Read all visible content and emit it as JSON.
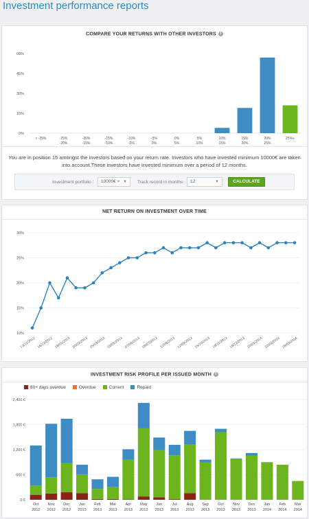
{
  "page": {
    "title": "Investment performance reports"
  },
  "compare": {
    "title": "COMPARE YOUR RETURNS WITH OTHER INVESTORS",
    "summary_line1": "You are in position 15 amongst the investors based on your return rate. Investors who have invested minimum 10000€ are taken",
    "summary_line2": "into account.These investors have invested minimum over a period of 12 months.",
    "filter": {
      "portfolio_label": "Investment portfolio :",
      "portfolio_value": "10000€ >",
      "track_label": "Track record in months:",
      "track_value": "12",
      "calculate_label": "CALCULATE"
    }
  },
  "net_return": {
    "title": "NET RETURN ON INVESTMENT OVER TIME"
  },
  "risk": {
    "title": "INVESTMENT RISK PROFILE PER ISSUED MONTH"
  },
  "chart_data": [
    {
      "type": "bar",
      "title": "COMPARE YOUR RETURNS WITH OTHER INVESTORS",
      "categories": [
        "< -25%",
        "-25%\n-20%",
        "-20%\n-15%",
        "-15%\n-10%",
        "-10%\n-5%",
        "-5%\n0%",
        "0%\n5%",
        "5%\n10%",
        "10%\n15%",
        "15%\n20%",
        "20%\n25%",
        "25%+"
      ],
      "values": [
        0,
        0,
        0,
        0,
        0,
        0,
        0,
        0,
        4,
        19,
        57,
        21
      ],
      "highlight_index": 11,
      "colors": {
        "bar": "#3d8dc4",
        "highlight": "#6cb51f"
      },
      "yticks": [
        "0%",
        "15%",
        "30%",
        "45%",
        "60%"
      ],
      "ylim": [
        0,
        60
      ],
      "grid": false
    },
    {
      "type": "line",
      "title": "NET RETURN ON INVESTMENT OVER TIME",
      "values": [
        11,
        15,
        20,
        17,
        21,
        19,
        19,
        20,
        22,
        23,
        24,
        25,
        25,
        26,
        26,
        27,
        26,
        27,
        27,
        27,
        28,
        27,
        28,
        28,
        28,
        27,
        28,
        27,
        28,
        28,
        28
      ],
      "xtick_labels": [
        "13/11/2012",
        "16/12/2012",
        "18/01/2013",
        "20/02/2013",
        "25/03/2013",
        "02/05/2013",
        "07/06/2013",
        "09/07/2013",
        "11/08/2013",
        "12/09/2013",
        "15/10/2013",
        "18/11/2013",
        "18/12/2013",
        "20/01/2014",
        "22/02/2014",
        "28/03/2014"
      ],
      "yticks": [
        "10%",
        "15%",
        "20%",
        "25%",
        "30%"
      ],
      "ylim": [
        10,
        30
      ],
      "color": "#2e82c0",
      "grid": true
    },
    {
      "type": "bar",
      "stacked": true,
      "title": "INVESTMENT RISK PROFILE PER ISSUED MONTH",
      "categories": [
        "Oct\n2012",
        "Nov\n2012",
        "Dec\n2012",
        "Jan\n2013",
        "Feb\n2013",
        "Mar\n2013",
        "Apr\n2013",
        "May\n2013",
        "Jun\n2013",
        "Jul\n2013",
        "Aug\n2013",
        "Sep\n2013",
        "Oct\n2013",
        "Nov\n2013",
        "Dec\n2013",
        "Jan\n2014",
        "Feb\n2014",
        "Mar\n2014"
      ],
      "series": [
        {
          "name": "60+ days overdue",
          "color": "#8b2316",
          "values": [
            120,
            150,
            180,
            160,
            20,
            20,
            10,
            80,
            60,
            15,
            160,
            0,
            0,
            0,
            0,
            0,
            0,
            0
          ]
        },
        {
          "name": "Overdue",
          "color": "#e8763a",
          "values": [
            0,
            0,
            0,
            0,
            0,
            0,
            0,
            0,
            0,
            0,
            0,
            0,
            0,
            0,
            0,
            0,
            0,
            0
          ]
        },
        {
          "name": "Current",
          "color": "#6cb51f",
          "values": [
            220,
            390,
            700,
            450,
            240,
            290,
            950,
            1630,
            1140,
            1050,
            1160,
            890,
            1620,
            980,
            1060,
            900,
            840,
            450
          ]
        },
        {
          "name": "Repaid",
          "color": "#3d8dc4",
          "values": [
            960,
            1280,
            1060,
            230,
            230,
            240,
            250,
            610,
            290,
            250,
            330,
            70,
            80,
            10,
            60,
            0,
            0,
            0
          ]
        }
      ],
      "yticks": [
        "0 €",
        "600 €",
        "1,200 €",
        "1,800 €",
        "2,400 €"
      ],
      "ylim": [
        0,
        2400
      ],
      "legend_position": "top-left",
      "grid": true
    }
  ]
}
